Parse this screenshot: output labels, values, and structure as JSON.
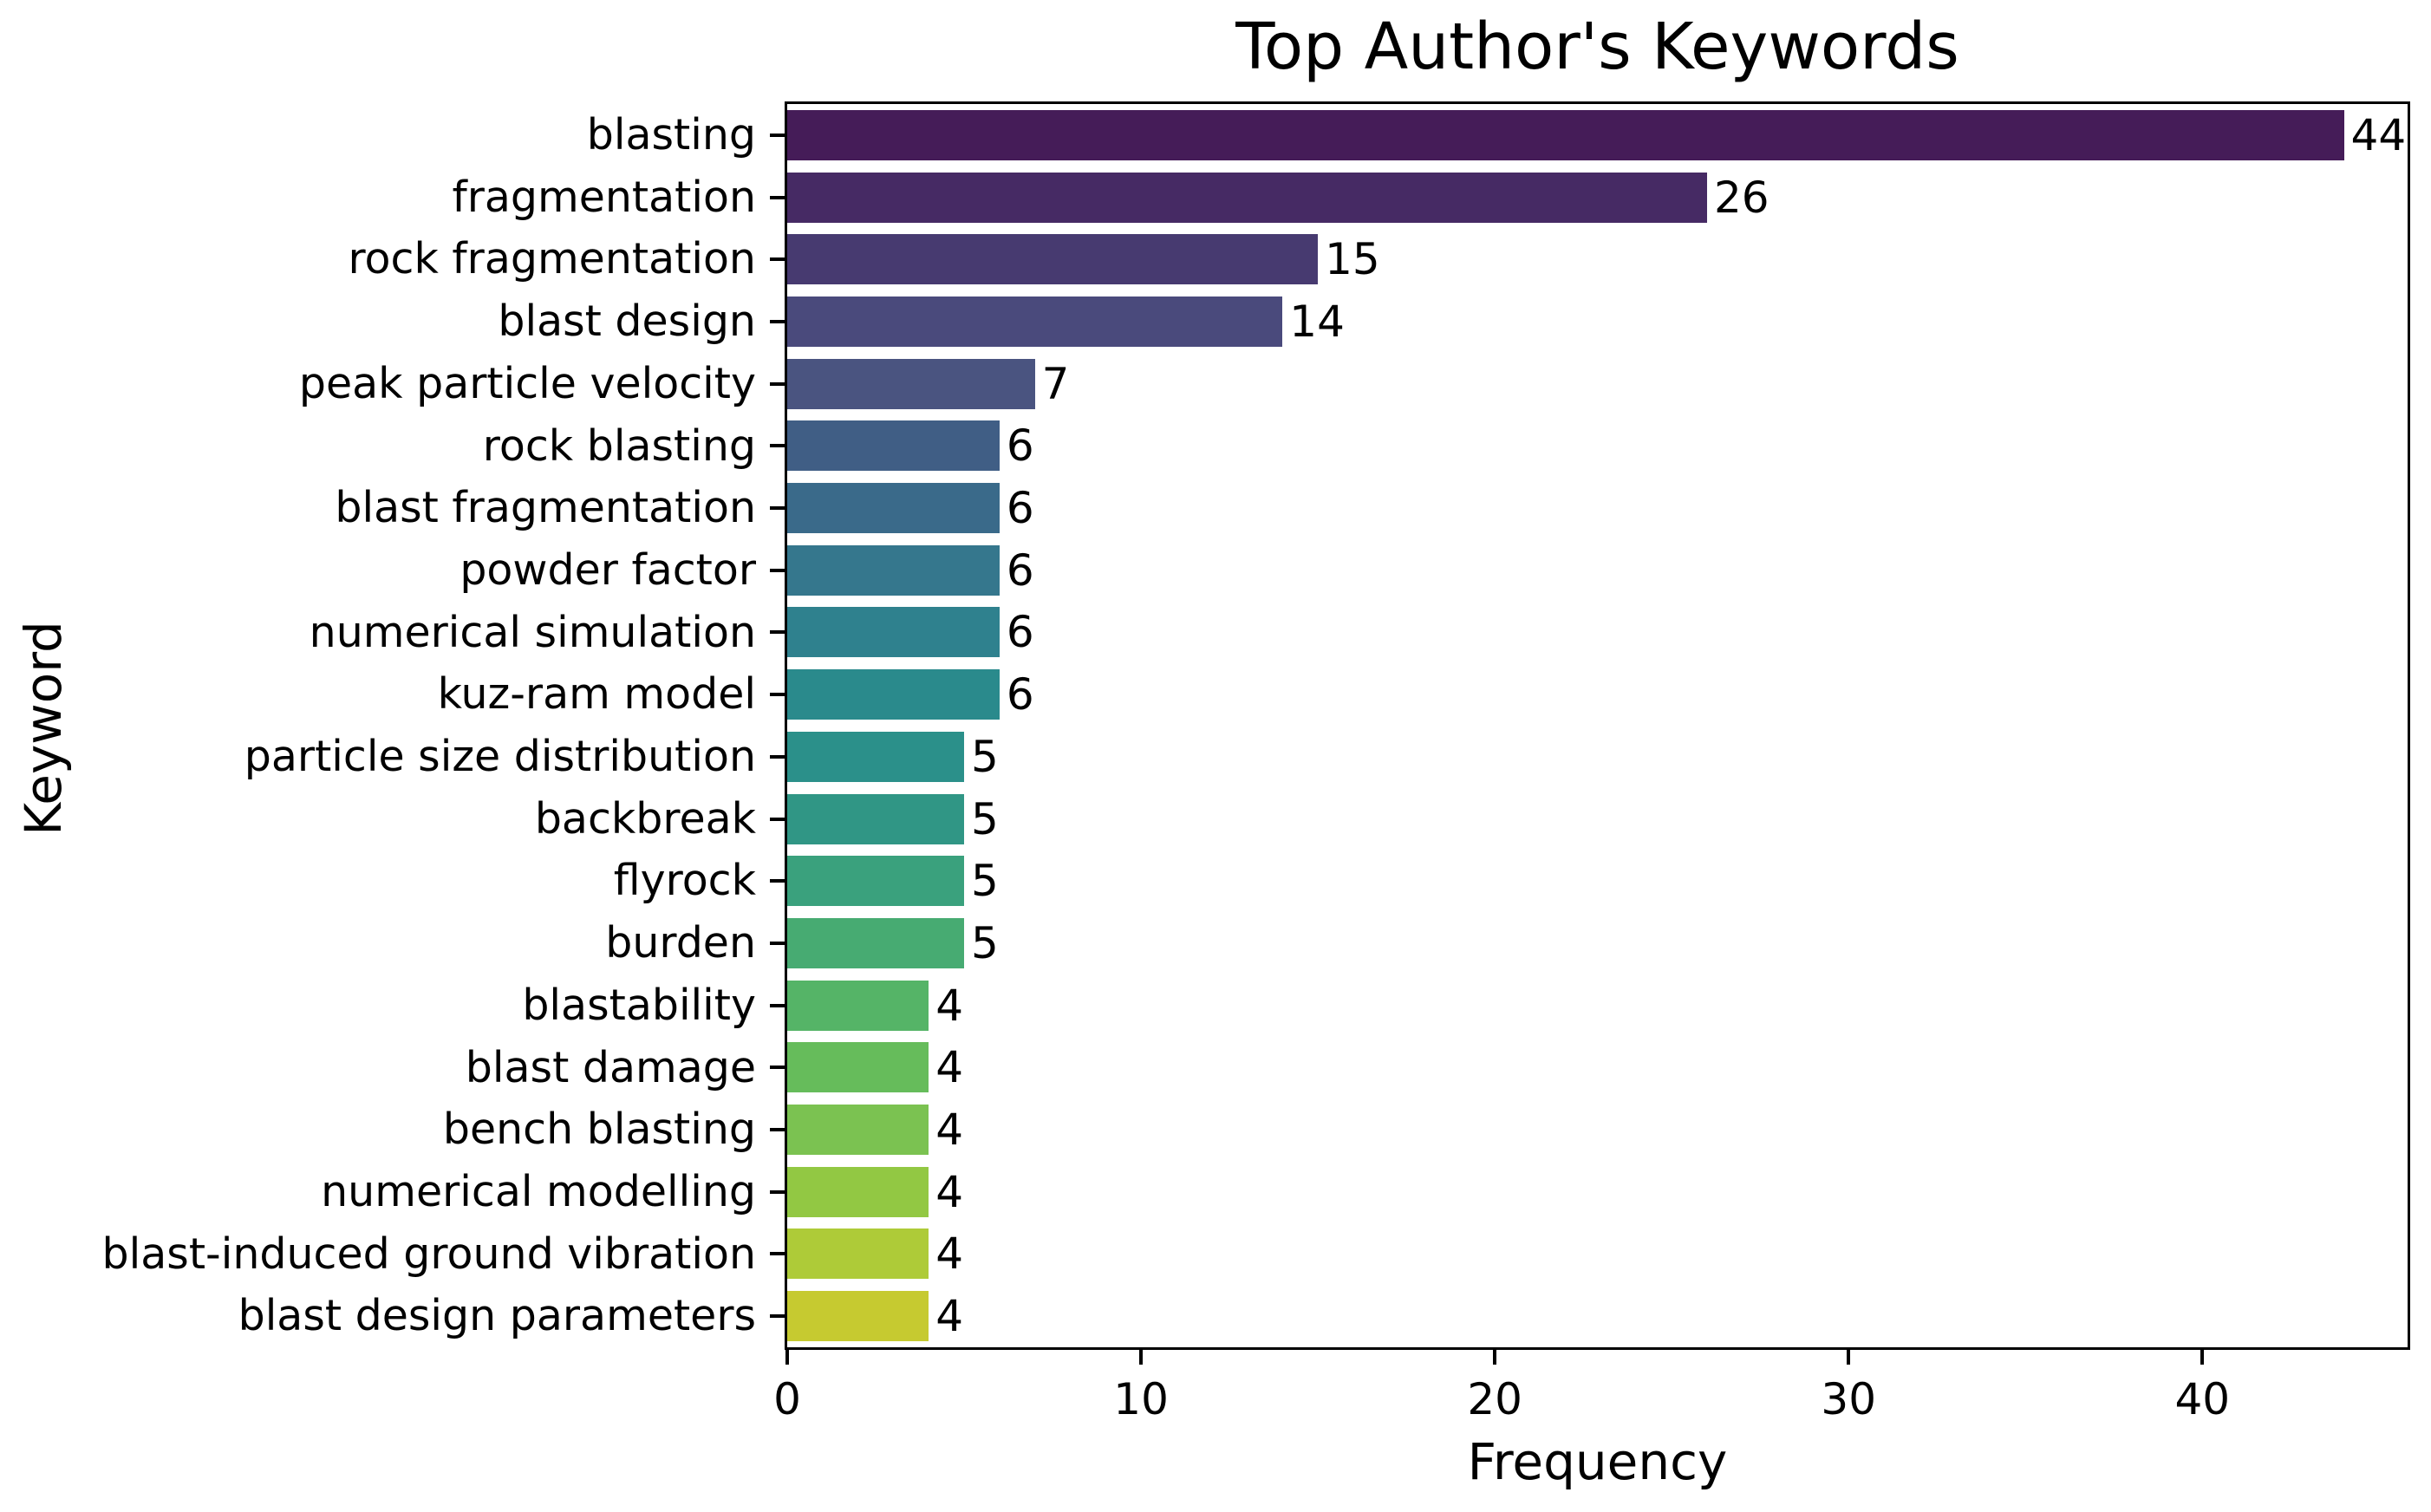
{
  "chart_data": {
    "type": "bar",
    "orientation": "horizontal",
    "title": "Top Author's Keywords",
    "xlabel": "Frequency",
    "ylabel": "Keyword",
    "categories": [
      "blasting",
      "fragmentation",
      "rock fragmentation",
      "blast design",
      "peak particle velocity",
      "rock blasting",
      "blast fragmentation",
      "powder factor",
      "numerical simulation",
      "kuz-ram model",
      "particle size distribution",
      "backbreak",
      "flyrock",
      "burden",
      "blastability",
      "blast damage",
      "bench blasting",
      "numerical modelling",
      "blast-induced ground vibration",
      "blast design parameters"
    ],
    "values": [
      44,
      26,
      15,
      14,
      7,
      6,
      6,
      6,
      6,
      6,
      5,
      5,
      5,
      5,
      4,
      4,
      4,
      4,
      4,
      4
    ],
    "bar_colors": [
      "#451c58",
      "#462a64",
      "#473a70",
      "#4a4a7c",
      "#4a5480",
      "#405e85",
      "#3a6a8a",
      "#35778d",
      "#2f818e",
      "#2a8a8c",
      "#2b908a",
      "#309685",
      "#3aa17d",
      "#47ab72",
      "#55b467",
      "#66bc5b",
      "#7bc251",
      "#92c843",
      "#aecb38",
      "#c6ca30"
    ],
    "palette_name": "viridis",
    "x_ticks": [
      0,
      10,
      20,
      30,
      40
    ],
    "xlim": [
      0,
      45.8
    ],
    "grid": false,
    "legend": "none",
    "background_color": "#ffffff",
    "text_color": "#000000",
    "spine_color": "#000000"
  }
}
